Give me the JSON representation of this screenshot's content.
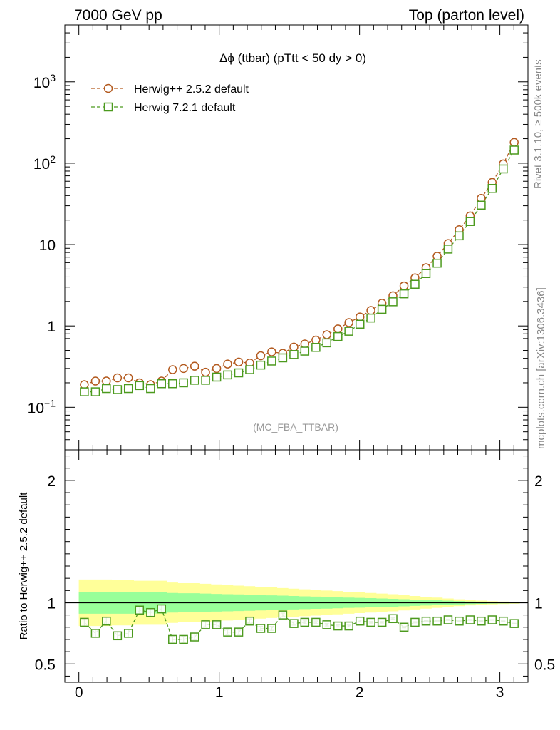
{
  "header": {
    "left": "7000 GeV pp",
    "right": "Top (parton level)"
  },
  "side_labels": {
    "rivet": "Rivet 3.1.10, ≥ 500k events",
    "mcplots": "mcplots.cern.ch [arXiv:1306.3436]"
  },
  "colors": {
    "herwig252": "#b35a1f",
    "herwig721": "#4c9a1e",
    "band_outer": "#ffff99",
    "band_inner": "#99ff99"
  },
  "chart_data": [
    {
      "type": "line",
      "title": "Δϕ (ttbar) (pTtt < 50 dy > 0)",
      "watermark": "(MC_FBA_TTBAR)",
      "scale": "log",
      "xlim": [
        -0.1,
        3.2
      ],
      "ylim": [
        0.03,
        5000
      ],
      "yticks": [
        {
          "value": 0.1,
          "label": "10",
          "sup": "−1"
        },
        {
          "value": 1,
          "label": "1",
          "sup": ""
        },
        {
          "value": 10,
          "label": "10",
          "sup": ""
        },
        {
          "value": 100,
          "label": "10",
          "sup": "2"
        },
        {
          "value": 1000,
          "label": "10",
          "sup": "3"
        }
      ],
      "legend_position": "top-left",
      "x": [
        0.039,
        0.118,
        0.196,
        0.275,
        0.353,
        0.432,
        0.511,
        0.589,
        0.668,
        0.746,
        0.825,
        0.903,
        0.982,
        1.06,
        1.139,
        1.217,
        1.296,
        1.374,
        1.453,
        1.532,
        1.61,
        1.689,
        1.767,
        1.846,
        1.924,
        2.003,
        2.081,
        2.16,
        2.238,
        2.317,
        2.395,
        2.474,
        2.553,
        2.631,
        2.71,
        2.788,
        2.867,
        2.945,
        3.024,
        3.102
      ],
      "series": [
        {
          "name": "Herwig++ 2.5.2 default",
          "marker": "circle",
          "values": [
            0.19,
            0.21,
            0.21,
            0.23,
            0.23,
            0.2,
            0.19,
            0.21,
            0.29,
            0.3,
            0.32,
            0.27,
            0.3,
            0.34,
            0.36,
            0.35,
            0.43,
            0.48,
            0.46,
            0.55,
            0.6,
            0.67,
            0.78,
            0.92,
            1.1,
            1.29,
            1.55,
            1.9,
            2.35,
            3.1,
            3.9,
            5.2,
            7.2,
            10.3,
            15.2,
            22.5,
            37,
            58,
            98,
            180
          ]
        },
        {
          "name": "Herwig 7.2.1 default",
          "marker": "square",
          "values": [
            0.155,
            0.155,
            0.17,
            0.165,
            0.17,
            0.185,
            0.17,
            0.195,
            0.195,
            0.2,
            0.215,
            0.215,
            0.235,
            0.25,
            0.265,
            0.29,
            0.33,
            0.37,
            0.405,
            0.445,
            0.49,
            0.545,
            0.62,
            0.74,
            0.86,
            1.05,
            1.25,
            1.6,
            1.98,
            2.48,
            3.25,
            4.4,
            5.9,
            8.8,
            12.8,
            19.2,
            30.5,
            49,
            85,
            145
          ]
        }
      ]
    },
    {
      "type": "line",
      "ylabel": "Ratio to Herwig++ 2.5.2 default",
      "xlim": [
        -0.1,
        3.2
      ],
      "ylim": [
        0.35,
        2.25
      ],
      "xticks": [
        0,
        1,
        2,
        3
      ],
      "yticks": [
        0.5,
        1,
        2
      ],
      "x": [
        0.039,
        0.118,
        0.196,
        0.275,
        0.353,
        0.432,
        0.511,
        0.589,
        0.668,
        0.746,
        0.825,
        0.903,
        0.982,
        1.06,
        1.139,
        1.217,
        1.296,
        1.374,
        1.453,
        1.532,
        1.61,
        1.689,
        1.767,
        1.846,
        1.924,
        2.003,
        2.081,
        2.16,
        2.238,
        2.317,
        2.395,
        2.474,
        2.553,
        2.631,
        2.71,
        2.788,
        2.867,
        2.945,
        3.024,
        3.102
      ],
      "reference": 1,
      "band_outer_halfwidth": [
        0.19,
        0.19,
        0.19,
        0.185,
        0.185,
        0.18,
        0.18,
        0.18,
        0.165,
        0.16,
        0.16,
        0.155,
        0.15,
        0.145,
        0.14,
        0.135,
        0.13,
        0.125,
        0.12,
        0.115,
        0.11,
        0.105,
        0.1,
        0.095,
        0.09,
        0.085,
        0.08,
        0.075,
        0.07,
        0.063,
        0.055,
        0.048,
        0.042,
        0.035,
        0.028,
        0.022,
        0.017,
        0.013,
        0.01,
        0.008
      ],
      "band_inner_halfwidth": [
        0.09,
        0.09,
        0.09,
        0.09,
        0.09,
        0.088,
        0.088,
        0.088,
        0.08,
        0.078,
        0.078,
        0.075,
        0.072,
        0.07,
        0.068,
        0.066,
        0.063,
        0.06,
        0.058,
        0.055,
        0.052,
        0.05,
        0.048,
        0.045,
        0.042,
        0.04,
        0.038,
        0.035,
        0.032,
        0.029,
        0.026,
        0.023,
        0.02,
        0.017,
        0.014,
        0.011,
        0.009,
        0.007,
        0.005,
        0.004
      ],
      "series": [
        {
          "name": "Herwig 7.2.1 default",
          "marker": "square",
          "values": [
            0.84,
            0.75,
            0.85,
            0.73,
            0.75,
            0.94,
            0.92,
            0.95,
            0.7,
            0.7,
            0.72,
            0.82,
            0.82,
            0.76,
            0.76,
            0.85,
            0.79,
            0.79,
            0.9,
            0.83,
            0.84,
            0.84,
            0.82,
            0.81,
            0.81,
            0.85,
            0.84,
            0.84,
            0.87,
            0.8,
            0.84,
            0.85,
            0.85,
            0.86,
            0.85,
            0.86,
            0.85,
            0.86,
            0.85,
            0.83
          ],
          "errors": [
            0.03,
            0.03,
            0.03,
            0.03,
            0.03,
            0.03,
            0.03,
            0.03,
            0.025,
            0.025,
            0.025,
            0.022,
            0.02,
            0.02,
            0.02,
            0.018,
            0.017,
            0.016,
            0.015,
            0.013,
            0.012,
            0.011,
            0.01,
            0.009,
            0.008,
            0.008,
            0.007,
            0.006,
            0.006,
            0.005,
            0.005,
            0.004,
            0.004,
            0.004,
            0.003,
            0.003,
            0.003,
            0.002,
            0.002,
            0.002
          ]
        }
      ]
    }
  ]
}
